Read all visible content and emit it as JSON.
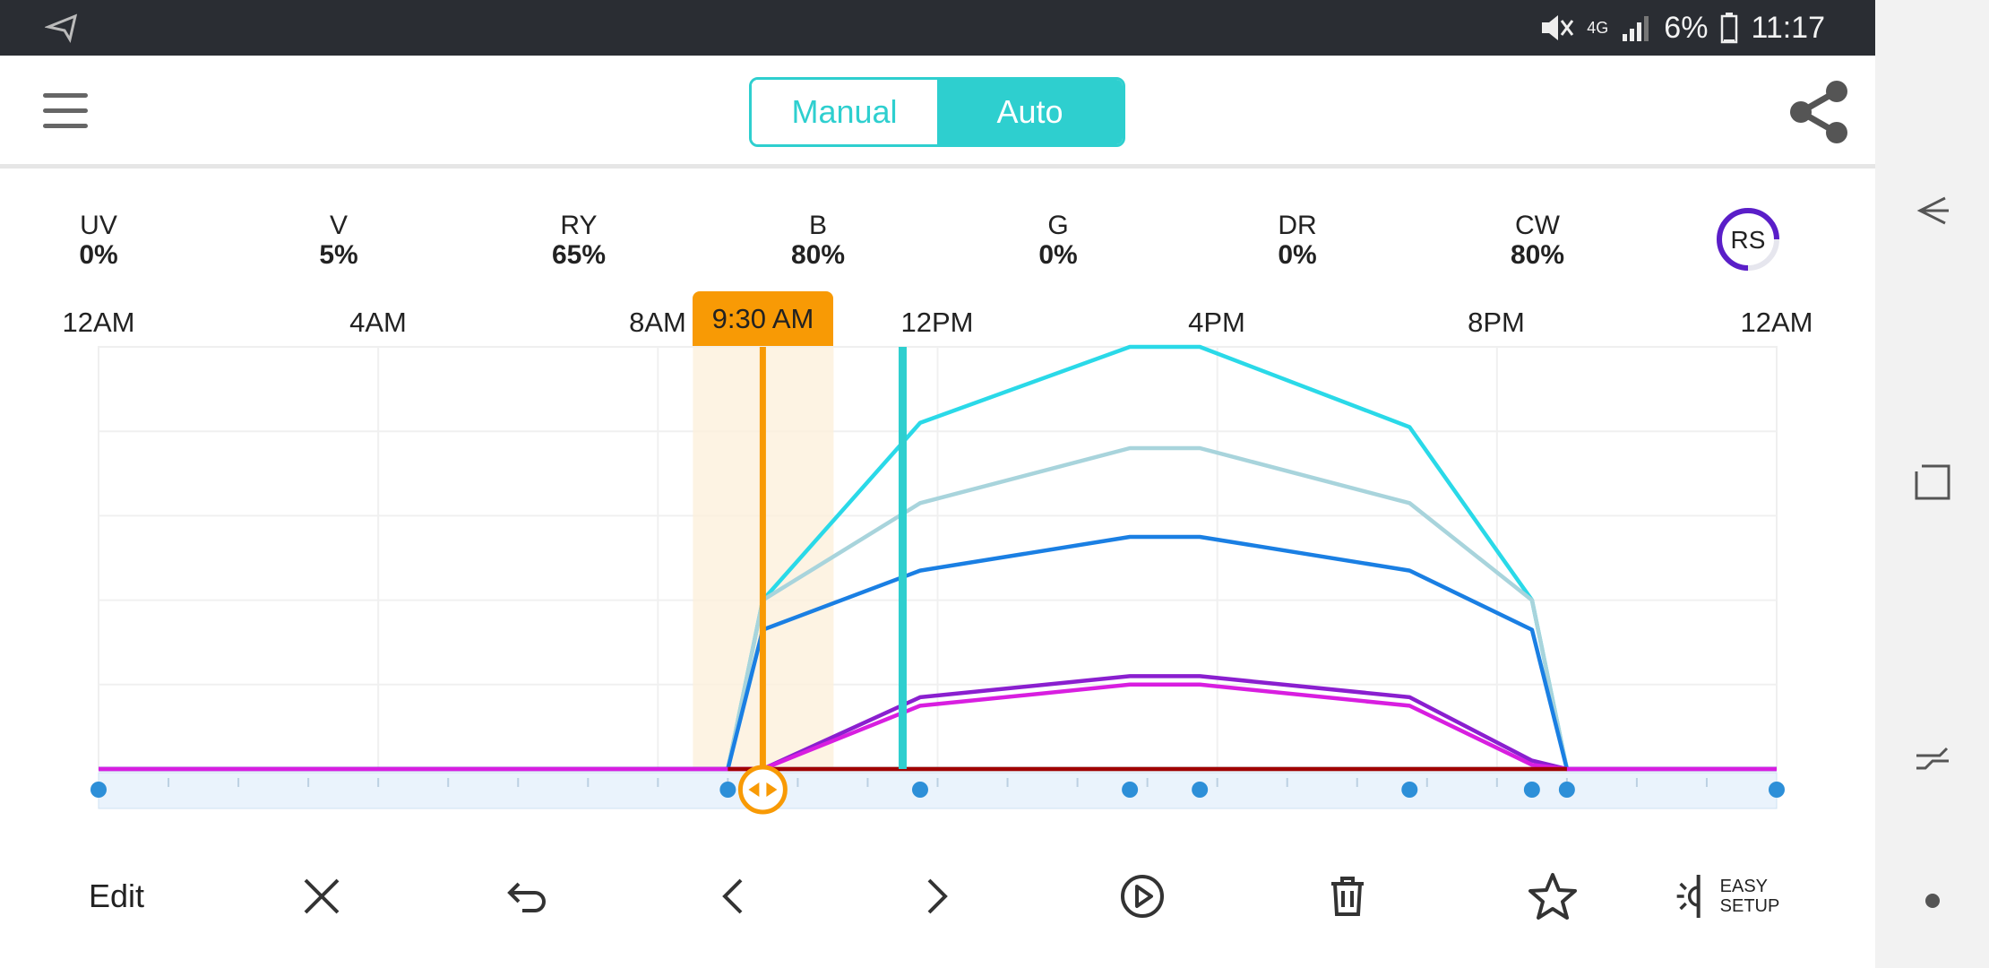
{
  "status_bar": {
    "battery": "6%",
    "time": "11:17",
    "network": "4G"
  },
  "mode_toggle": {
    "manual_label": "Manual",
    "auto_label": "Auto",
    "selected": "Auto"
  },
  "channels": [
    {
      "name": "UV",
      "value": "0%"
    },
    {
      "name": "V",
      "value": "5%"
    },
    {
      "name": "RY",
      "value": "65%"
    },
    {
      "name": "B",
      "value": "80%"
    },
    {
      "name": "G",
      "value": "0%"
    },
    {
      "name": "DR",
      "value": "0%"
    },
    {
      "name": "CW",
      "value": "80%"
    }
  ],
  "rs_label": "RS",
  "timeline": {
    "cursor_time": "9:30 AM",
    "labels": [
      "12AM",
      "4AM",
      "8AM",
      "12PM",
      "4PM",
      "8PM",
      "12AM"
    ]
  },
  "chart_data": {
    "type": "line",
    "xlabel": "",
    "ylabel": "",
    "xlim_hours": [
      0,
      24
    ],
    "ylim": [
      0,
      100
    ],
    "cursor_hour": 9.5,
    "marker_hour": 11.5,
    "keyframe_hours": [
      0,
      9,
      11.75,
      14.75,
      15.75,
      18.75,
      20.5,
      21
    ],
    "series": [
      {
        "color": "#2ad9e8",
        "points": [
          [
            0,
            0
          ],
          [
            9,
            0
          ],
          [
            9.5,
            40
          ],
          [
            11.75,
            82
          ],
          [
            14.75,
            100
          ],
          [
            15.75,
            100
          ],
          [
            18.75,
            81
          ],
          [
            20.5,
            40
          ],
          [
            21,
            0
          ],
          [
            24,
            0
          ]
        ]
      },
      {
        "color": "#a8d4dc",
        "points": [
          [
            0,
            0
          ],
          [
            9,
            0
          ],
          [
            9.5,
            40
          ],
          [
            11.75,
            63
          ],
          [
            14.75,
            76
          ],
          [
            15.75,
            76
          ],
          [
            18.75,
            63
          ],
          [
            20.5,
            40
          ],
          [
            21,
            0
          ],
          [
            24,
            0
          ]
        ]
      },
      {
        "color": "#1a7fe3",
        "points": [
          [
            0,
            0
          ],
          [
            9,
            0
          ],
          [
            9.5,
            33
          ],
          [
            11.75,
            47
          ],
          [
            14.75,
            55
          ],
          [
            15.75,
            55
          ],
          [
            18.75,
            47
          ],
          [
            20.5,
            33
          ],
          [
            21,
            0
          ],
          [
            24,
            0
          ]
        ]
      },
      {
        "color": "#8a1fcf",
        "points": [
          [
            0,
            0
          ],
          [
            9,
            0
          ],
          [
            9.5,
            0
          ],
          [
            11.75,
            17
          ],
          [
            14.75,
            22
          ],
          [
            15.75,
            22
          ],
          [
            18.75,
            17
          ],
          [
            20.5,
            2
          ],
          [
            21,
            0
          ],
          [
            24,
            0
          ]
        ]
      },
      {
        "color": "#d81ee0",
        "points": [
          [
            0,
            0
          ],
          [
            9,
            0
          ],
          [
            9.5,
            0
          ],
          [
            11.75,
            15
          ],
          [
            14.75,
            20
          ],
          [
            15.75,
            20
          ],
          [
            18.75,
            15
          ],
          [
            20.5,
            1
          ],
          [
            21,
            0
          ],
          [
            24,
            0
          ]
        ]
      },
      {
        "color": "#a00000",
        "points": [
          [
            9,
            0
          ],
          [
            21,
            0
          ]
        ]
      }
    ]
  },
  "toolbar": {
    "edit_label": "Edit",
    "easy_setup_line1": "EASY",
    "easy_setup_line2": "SETUP",
    "icons": [
      "close-icon",
      "undo-icon",
      "chevron-left-icon",
      "chevron-right-icon",
      "play-icon",
      "trash-icon",
      "star-icon",
      "easy-setup-icon"
    ]
  }
}
